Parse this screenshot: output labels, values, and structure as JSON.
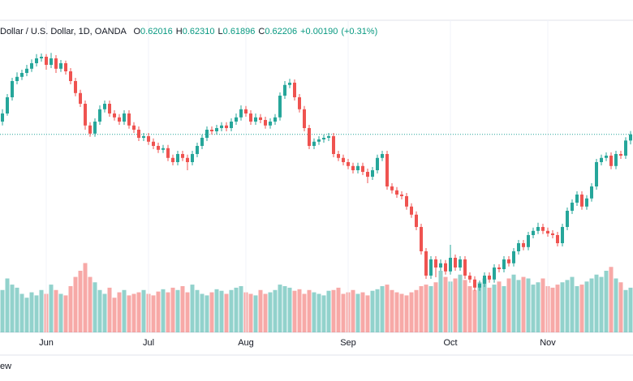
{
  "chart_data": {
    "type": "candlestick",
    "title": "Dollar / U.S. Dollar, 1D, OANDA",
    "header": [
      {
        "prefix": "O",
        "label": "0.62016"
      },
      {
        "prefix": "H",
        "label": "0.62310"
      },
      {
        "prefix": "L",
        "label": "0.61896"
      },
      {
        "prefix": "C",
        "label": "0.62206"
      },
      {
        "prefix": "",
        "label": "+0.00190"
      },
      {
        "prefix": "",
        "label": "(+0.31%)"
      }
    ],
    "footer": "ew",
    "up_color": "#26a69a",
    "down_color": "#ef5350",
    "ylim": [
      0.561,
      0.656
    ],
    "y2lim": [
      0,
      400
    ],
    "last_price_line": true,
    "categories": [
      null,
      null,
      null,
      null,
      null,
      null,
      null,
      null,
      null,
      "Jun",
      null,
      null,
      null,
      null,
      null,
      null,
      null,
      null,
      null,
      null,
      null,
      null,
      null,
      null,
      null,
      null,
      null,
      null,
      null,
      null,
      "Jul",
      null,
      null,
      null,
      null,
      null,
      null,
      null,
      null,
      null,
      null,
      null,
      null,
      null,
      null,
      null,
      null,
      null,
      null,
      null,
      "Aug",
      null,
      null,
      null,
      null,
      null,
      null,
      null,
      null,
      null,
      null,
      null,
      null,
      null,
      null,
      null,
      null,
      null,
      null,
      null,
      null,
      "Sep",
      null,
      null,
      null,
      null,
      null,
      null,
      null,
      null,
      null,
      null,
      null,
      null,
      null,
      null,
      null,
      null,
      null,
      null,
      null,
      null,
      "Oct",
      null,
      null,
      null,
      null,
      null,
      null,
      null,
      null,
      null,
      null,
      null,
      null,
      null,
      null,
      null,
      null,
      null,
      null,
      null,
      "Nov",
      null,
      null,
      null,
      null,
      null,
      null,
      null,
      null,
      null,
      null,
      null,
      null,
      null,
      null,
      null,
      null,
      null
    ],
    "open": [
      0.626,
      0.6285,
      0.6335,
      0.6385,
      0.6398,
      0.641,
      0.6423,
      0.644,
      0.6455,
      0.646,
      0.6435,
      0.6455,
      0.6423,
      0.644,
      0.6415,
      0.6385,
      0.6348,
      0.6315,
      0.6248,
      0.6223,
      0.626,
      0.6298,
      0.6315,
      0.6285,
      0.6273,
      0.626,
      0.6285,
      0.6248,
      0.6235,
      0.621,
      0.6215,
      0.6198,
      0.6185,
      0.6173,
      0.6178,
      0.6148,
      0.6135,
      0.616,
      0.6148,
      0.6135,
      0.616,
      0.6185,
      0.621,
      0.6235,
      0.623,
      0.624,
      0.6248,
      0.624,
      0.626,
      0.6273,
      0.6298,
      0.6285,
      0.626,
      0.6273,
      0.6265,
      0.6248,
      0.626,
      0.6273,
      0.634,
      0.6373,
      0.638,
      0.6335,
      0.6298,
      0.624,
      0.6185,
      0.6198,
      0.6205,
      0.621,
      0.6215,
      0.616,
      0.6148,
      0.6135,
      0.6123,
      0.611,
      0.6123,
      0.6105,
      0.609,
      0.611,
      0.6148,
      0.616,
      0.606,
      0.6048,
      0.6035,
      0.603,
      0.5998,
      0.5973,
      0.5935,
      0.586,
      0.5785,
      0.5835,
      0.581,
      0.5823,
      0.5798,
      0.584,
      0.581,
      0.5835,
      0.5785,
      0.5773,
      0.5748,
      0.576,
      0.5785,
      0.5773,
      0.581,
      0.5805,
      0.5835,
      0.5823,
      0.586,
      0.5885,
      0.5873,
      0.591,
      0.5923,
      0.5935,
      0.5923,
      0.5915,
      0.591,
      0.5885,
      0.5935,
      0.5985,
      0.601,
      0.6035,
      0.5998,
      0.6023,
      0.606,
      0.6135,
      0.6148,
      0.6155,
      0.6123,
      0.616,
      0.6155,
      0.62016
    ],
    "high": [
      0.6298,
      0.6345,
      0.6395,
      0.6412,
      0.642,
      0.6435,
      0.6452,
      0.6468,
      0.647,
      0.6468,
      0.6472,
      0.6465,
      0.645,
      0.6448,
      0.6425,
      0.6395,
      0.6358,
      0.6325,
      0.6258,
      0.627,
      0.631,
      0.6325,
      0.6325,
      0.6295,
      0.6283,
      0.6295,
      0.6295,
      0.6258,
      0.6245,
      0.6225,
      0.6225,
      0.6208,
      0.6195,
      0.6188,
      0.6188,
      0.6158,
      0.617,
      0.617,
      0.6158,
      0.617,
      0.6195,
      0.622,
      0.6245,
      0.6245,
      0.625,
      0.6258,
      0.6258,
      0.627,
      0.6285,
      0.631,
      0.6308,
      0.6295,
      0.6285,
      0.6283,
      0.6275,
      0.627,
      0.6283,
      0.635,
      0.6385,
      0.6392,
      0.639,
      0.6345,
      0.6308,
      0.625,
      0.6208,
      0.6215,
      0.622,
      0.6225,
      0.6225,
      0.617,
      0.6158,
      0.6145,
      0.6133,
      0.6133,
      0.6133,
      0.6115,
      0.612,
      0.6158,
      0.617,
      0.617,
      0.607,
      0.6058,
      0.6045,
      0.604,
      0.6008,
      0.5983,
      0.5945,
      0.587,
      0.5845,
      0.5845,
      0.5835,
      0.5833,
      0.588,
      0.585,
      0.5845,
      0.5845,
      0.5795,
      0.5783,
      0.577,
      0.5795,
      0.5795,
      0.582,
      0.582,
      0.5845,
      0.5845,
      0.587,
      0.5895,
      0.5895,
      0.592,
      0.5933,
      0.5948,
      0.5945,
      0.5933,
      0.5925,
      0.592,
      0.5945,
      0.5995,
      0.602,
      0.6045,
      0.6045,
      0.6033,
      0.607,
      0.6145,
      0.6158,
      0.6165,
      0.6165,
      0.617,
      0.617,
      0.6212,
      0.6231
    ],
    "low": [
      0.6248,
      0.6278,
      0.6325,
      0.6375,
      0.6388,
      0.64,
      0.6413,
      0.643,
      0.6445,
      0.642,
      0.6425,
      0.641,
      0.6413,
      0.6405,
      0.6375,
      0.6338,
      0.6305,
      0.6235,
      0.6213,
      0.6213,
      0.625,
      0.6288,
      0.6275,
      0.6263,
      0.625,
      0.625,
      0.6238,
      0.6225,
      0.62,
      0.62,
      0.6188,
      0.6175,
      0.6163,
      0.6163,
      0.6138,
      0.6125,
      0.6125,
      0.6138,
      0.611,
      0.6125,
      0.615,
      0.6175,
      0.62,
      0.622,
      0.622,
      0.623,
      0.623,
      0.623,
      0.625,
      0.6263,
      0.6275,
      0.625,
      0.625,
      0.6255,
      0.6238,
      0.6238,
      0.625,
      0.6263,
      0.633,
      0.6363,
      0.6325,
      0.6288,
      0.623,
      0.6175,
      0.6175,
      0.6188,
      0.6195,
      0.62,
      0.615,
      0.6138,
      0.6125,
      0.6113,
      0.61,
      0.61,
      0.6095,
      0.607,
      0.608,
      0.61,
      0.6138,
      0.605,
      0.6038,
      0.6025,
      0.602,
      0.5988,
      0.5963,
      0.5925,
      0.585,
      0.5775,
      0.5775,
      0.578,
      0.58,
      0.5788,
      0.5788,
      0.58,
      0.58,
      0.5775,
      0.5763,
      0.5738,
      0.5738,
      0.575,
      0.5763,
      0.5763,
      0.5795,
      0.5795,
      0.5813,
      0.5813,
      0.585,
      0.5863,
      0.5863,
      0.59,
      0.5913,
      0.5913,
      0.5905,
      0.59,
      0.5875,
      0.5875,
      0.5925,
      0.5975,
      0.6,
      0.5988,
      0.5988,
      0.6013,
      0.605,
      0.6125,
      0.6138,
      0.6113,
      0.6113,
      0.6145,
      0.6145,
      0.61896
    ],
    "close": [
      0.6285,
      0.6335,
      0.6385,
      0.6398,
      0.641,
      0.6423,
      0.644,
      0.6455,
      0.646,
      0.6435,
      0.6455,
      0.6423,
      0.644,
      0.6415,
      0.6385,
      0.6348,
      0.6315,
      0.6248,
      0.6223,
      0.626,
      0.6298,
      0.6315,
      0.6285,
      0.6273,
      0.626,
      0.6285,
      0.6248,
      0.6235,
      0.621,
      0.6215,
      0.6198,
      0.6185,
      0.6173,
      0.6178,
      0.6148,
      0.6135,
      0.616,
      0.6148,
      0.6135,
      0.616,
      0.6185,
      0.621,
      0.6235,
      0.623,
      0.624,
      0.6248,
      0.624,
      0.626,
      0.6273,
      0.6298,
      0.6285,
      0.626,
      0.6273,
      0.6265,
      0.6248,
      0.626,
      0.6273,
      0.634,
      0.6373,
      0.638,
      0.6335,
      0.6298,
      0.624,
      0.6185,
      0.6198,
      0.6205,
      0.621,
      0.6215,
      0.616,
      0.6148,
      0.6135,
      0.6123,
      0.611,
      0.6123,
      0.6105,
      0.609,
      0.611,
      0.6148,
      0.616,
      0.606,
      0.6048,
      0.6035,
      0.603,
      0.5998,
      0.5973,
      0.5935,
      0.586,
      0.5785,
      0.5835,
      0.581,
      0.5823,
      0.5798,
      0.584,
      0.581,
      0.5835,
      0.5785,
      0.5773,
      0.5748,
      0.576,
      0.5785,
      0.5773,
      0.581,
      0.5805,
      0.5835,
      0.5823,
      0.586,
      0.5885,
      0.5873,
      0.591,
      0.5923,
      0.5935,
      0.5923,
      0.5915,
      0.591,
      0.5885,
      0.5935,
      0.5985,
      0.601,
      0.6035,
      0.5998,
      0.6023,
      0.606,
      0.6135,
      0.6148,
      0.6155,
      0.6123,
      0.616,
      0.6155,
      0.62016,
      0.62206
    ],
    "volume": [
      55,
      70,
      62,
      58,
      50,
      45,
      52,
      48,
      55,
      50,
      62,
      55,
      50,
      48,
      60,
      72,
      80,
      90,
      72,
      65,
      55,
      50,
      58,
      45,
      52,
      55,
      48,
      50,
      52,
      55,
      50,
      48,
      53,
      56,
      52,
      58,
      55,
      60,
      52,
      62,
      55,
      50,
      48,
      52,
      56,
      54,
      50,
      55,
      58,
      60,
      52,
      50,
      48,
      55,
      50,
      52,
      55,
      62,
      60,
      58,
      54,
      56,
      50,
      55,
      52,
      50,
      48,
      54,
      55,
      58,
      50,
      52,
      55,
      50,
      52,
      48,
      54,
      56,
      60,
      62,
      55,
      52,
      50,
      48,
      52,
      55,
      60,
      62,
      60,
      65,
      80,
      72,
      66,
      70,
      75,
      68,
      60,
      55,
      65,
      70,
      58,
      62,
      66,
      60,
      70,
      75,
      68,
      72,
      70,
      62,
      65,
      70,
      60,
      58,
      62,
      65,
      68,
      72,
      60,
      62,
      66,
      70,
      75,
      72,
      80,
      85,
      70,
      65,
      55,
      58
    ]
  }
}
